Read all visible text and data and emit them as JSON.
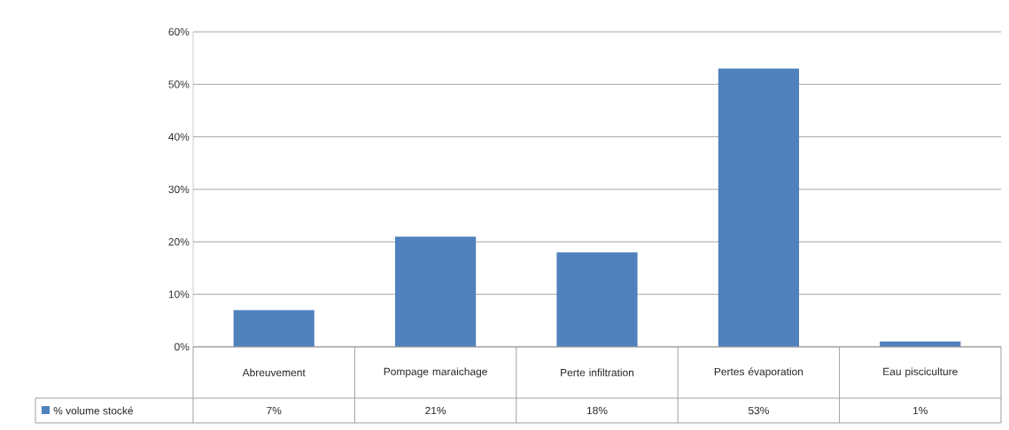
{
  "chart_data": {
    "type": "bar",
    "categories": [
      "Abreuvement",
      "Pompage maraichage",
      "Perte infiltration",
      "Pertes  évaporation",
      "Eau pisciculture"
    ],
    "series": [
      {
        "name": "% volume stocké",
        "color": "#4f81bd",
        "values": [
          7,
          21,
          18,
          53,
          1
        ],
        "value_labels": [
          "7%",
          "21%",
          "18%",
          "53%",
          "1%"
        ]
      }
    ],
    "ylim": [
      0,
      60
    ],
    "yticks": [
      {
        "value": 0,
        "label": "0%"
      },
      {
        "value": 10,
        "label": "10%"
      },
      {
        "value": 20,
        "label": "20%"
      },
      {
        "value": 30,
        "label": "30%"
      },
      {
        "value": 40,
        "label": "40%"
      },
      {
        "value": 50,
        "label": "50%"
      },
      {
        "value": 60,
        "label": "60%"
      }
    ],
    "grid": "y",
    "legend": "bottom"
  }
}
